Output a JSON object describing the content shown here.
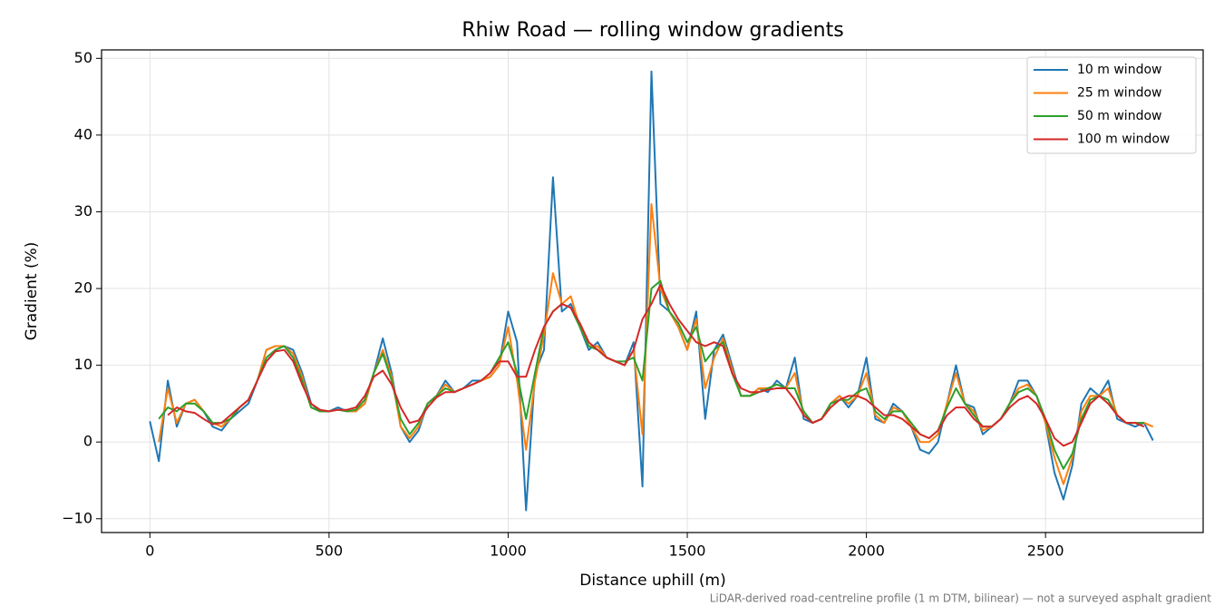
{
  "chart_data": {
    "type": "line",
    "title": "Rhiw Road — rolling window gradients",
    "xlabel": "Distance uphill (m)",
    "ylabel": "Gradient (%)",
    "annotation": "LiDAR-derived road-centreline profile (1 m DTM, bilinear) — not a surveyed asphalt gradient",
    "grid": true,
    "legend": "upper right",
    "xlim": [
      -135,
      2940
    ],
    "ylim": [
      -11.8,
      51.1
    ],
    "xticks": [
      0,
      500,
      1000,
      1500,
      2000,
      2500
    ],
    "yticks": [
      {
        "value": -10,
        "label": "−10"
      },
      0,
      10,
      20,
      30,
      40,
      50
    ],
    "x": [
      0,
      25,
      50,
      75,
      100,
      125,
      150,
      175,
      200,
      225,
      250,
      275,
      300,
      325,
      350,
      375,
      400,
      425,
      450,
      475,
      500,
      525,
      550,
      575,
      600,
      625,
      650,
      675,
      700,
      725,
      750,
      775,
      800,
      825,
      850,
      875,
      900,
      925,
      950,
      975,
      1000,
      1025,
      1050,
      1075,
      1100,
      1125,
      1150,
      1175,
      1200,
      1225,
      1250,
      1275,
      1300,
      1325,
      1350,
      1375,
      1400,
      1425,
      1450,
      1475,
      1500,
      1525,
      1550,
      1575,
      1600,
      1625,
      1650,
      1675,
      1700,
      1725,
      1750,
      1775,
      1800,
      1825,
      1850,
      1875,
      1900,
      1925,
      1950,
      1975,
      2000,
      2025,
      2050,
      2075,
      2100,
      2125,
      2150,
      2175,
      2200,
      2225,
      2250,
      2275,
      2300,
      2325,
      2350,
      2375,
      2400,
      2425,
      2450,
      2475,
      2500,
      2525,
      2550,
      2575,
      2600,
      2625,
      2650,
      2675,
      2700,
      2725,
      2750,
      2775,
      2800
    ],
    "series": [
      {
        "name": "10 m window",
        "color": "#1f77b4",
        "values": [
          2.7,
          -2.5,
          8,
          2,
          5,
          5.5,
          4,
          2,
          1.5,
          3,
          4,
          5,
          8,
          12,
          12.5,
          12.5,
          12,
          9,
          5,
          4,
          4,
          4.5,
          4,
          4,
          5,
          9,
          13.5,
          9,
          2,
          0,
          1.5,
          5,
          6,
          8,
          6.5,
          7,
          8,
          8,
          8.5,
          10,
          17,
          13,
          -8.9,
          9,
          12,
          34.5,
          17,
          18,
          15,
          12,
          13,
          11,
          10.5,
          10,
          13,
          -5.8,
          48.3,
          18,
          17,
          15,
          12,
          17,
          3,
          12,
          14,
          10,
          6,
          6,
          7,
          6.5,
          8,
          7,
          11,
          3,
          2.5,
          3,
          5,
          6,
          4.5,
          6,
          11,
          3,
          2.5,
          5,
          4,
          2,
          -1,
          -1.5,
          0,
          5,
          10,
          5,
          4.5,
          1,
          2,
          3,
          5,
          8,
          8,
          6,
          2.5,
          -4,
          -7.5,
          -3,
          5,
          7,
          6,
          8,
          3,
          2.5,
          2,
          2.5,
          0.2
        ]
      },
      {
        "name": "25 m window",
        "color": "#ff7f0e",
        "values": [
          null,
          0,
          7,
          2.5,
          5,
          5.5,
          4,
          2.5,
          2,
          3,
          4.5,
          5.5,
          8,
          12,
          12.5,
          12.5,
          11.5,
          8.5,
          4.5,
          4,
          4,
          4.2,
          4,
          4,
          5,
          9,
          12,
          8.5,
          2,
          0.5,
          2,
          5,
          6,
          7.5,
          6.5,
          7,
          7.5,
          8,
          8.5,
          10,
          15,
          8,
          -1,
          8,
          14,
          22,
          18,
          19,
          15,
          12.5,
          12.5,
          11,
          10.5,
          10,
          12,
          1,
          31,
          20,
          17,
          15,
          12,
          16,
          7,
          11,
          13.5,
          9.5,
          6,
          6,
          7,
          7,
          7.5,
          7,
          9,
          3.5,
          2.5,
          3,
          5,
          6,
          5,
          6,
          9,
          3.5,
          2.5,
          4.5,
          4,
          2,
          0,
          0,
          1,
          5,
          9,
          5,
          4,
          1.5,
          2,
          3,
          5,
          7,
          7.5,
          6,
          2.5,
          -2,
          -5.5,
          -2,
          4,
          6,
          6,
          7,
          3.5,
          2.5,
          2.5,
          2.5,
          2
        ]
      },
      {
        "name": "50 m window",
        "color": "#2ca02c",
        "values": [
          null,
          3,
          4.5,
          4,
          5,
          5,
          4,
          2.5,
          2.5,
          3,
          4.5,
          5.5,
          8,
          11,
          12,
          12.5,
          11,
          8,
          4.5,
          4,
          4,
          4.2,
          4,
          4.2,
          5.5,
          9,
          11.5,
          8,
          3,
          1,
          2.5,
          5,
          6,
          7,
          6.5,
          7,
          7.5,
          8,
          9,
          11,
          13,
          9,
          3,
          9,
          15,
          17,
          18,
          17.5,
          15,
          12.5,
          12,
          11,
          10.5,
          10.5,
          11,
          8,
          20,
          21,
          17,
          15.5,
          13,
          15,
          10.5,
          12,
          13,
          9,
          6,
          6,
          6.5,
          7,
          7.5,
          7,
          7,
          4,
          2.5,
          3,
          5,
          5.5,
          5.5,
          6.5,
          7,
          4,
          3,
          4,
          4,
          2.5,
          1,
          0.5,
          1.5,
          4.5,
          7,
          5,
          3.5,
          2,
          2,
          3,
          5,
          6.5,
          7,
          6,
          3,
          -1,
          -3.5,
          -1.5,
          3,
          5.5,
          6,
          5.5,
          3.5,
          2.5,
          2.5,
          2.5,
          null
        ]
      },
      {
        "name": "100 m window",
        "color": "#d62728",
        "values": [
          null,
          null,
          3.5,
          4.5,
          4,
          3.8,
          3,
          2.3,
          2.5,
          3.5,
          4.5,
          5.5,
          8,
          10.5,
          11.8,
          12,
          10.5,
          7.5,
          5,
          4.2,
          4,
          4.2,
          4.2,
          4.5,
          6,
          8.5,
          9.3,
          7.5,
          4.5,
          2.5,
          2.8,
          4.5,
          5.8,
          6.5,
          6.5,
          7,
          7.5,
          8,
          9,
          10.5,
          10.5,
          8.5,
          8.5,
          12,
          15,
          17,
          18,
          17.5,
          15.5,
          13,
          12,
          11,
          10.5,
          10,
          12,
          16,
          18,
          20.5,
          18,
          16,
          14.5,
          13,
          12.5,
          13,
          12.5,
          9,
          7,
          6.5,
          6.5,
          6.8,
          7,
          7,
          5.5,
          3.5,
          2.5,
          3,
          4.5,
          5.5,
          6,
          6,
          5.5,
          4.5,
          3.5,
          3.5,
          3,
          2,
          1,
          0.5,
          1.5,
          3.5,
          4.5,
          4.5,
          3,
          2,
          2,
          3,
          4.5,
          5.5,
          6,
          5,
          3,
          0.5,
          -0.5,
          0,
          2.5,
          5,
          6,
          5,
          3.5,
          2.5,
          2.5,
          2,
          null
        ]
      }
    ]
  }
}
